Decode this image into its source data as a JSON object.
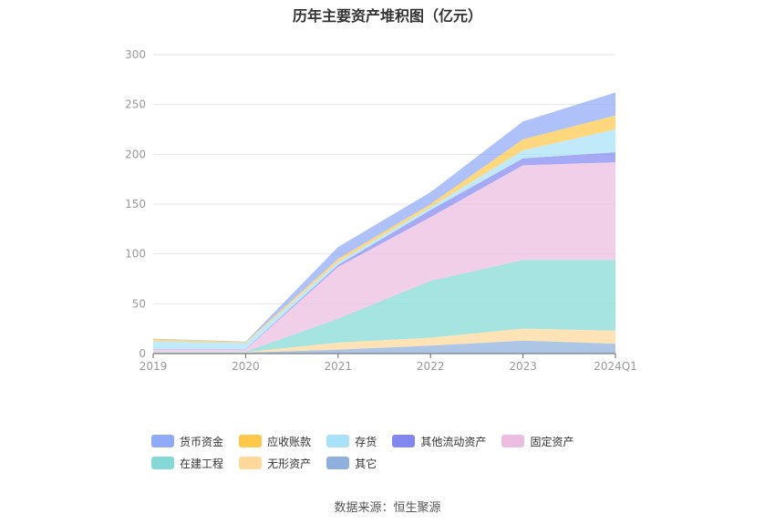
{
  "chart_data": {
    "type": "area",
    "stacked": true,
    "title": "历年主要资产堆积图（亿元）",
    "categories": [
      "2019",
      "2020",
      "2021",
      "2022",
      "2023",
      "2024Q1"
    ],
    "ylim": [
      0,
      300
    ],
    "yticks": [
      0,
      50,
      100,
      150,
      200,
      250,
      300
    ],
    "grid": true,
    "legend_position": "bottom",
    "series": [
      {
        "name": "其它",
        "color": "#8fb0dc",
        "values": [
          1,
          1,
          4,
          8,
          13,
          10
        ]
      },
      {
        "name": "无形资产",
        "color": "#ffd89a",
        "values": [
          0.5,
          0.5,
          7,
          8,
          12,
          13
        ]
      },
      {
        "name": "在建工程",
        "color": "#84d9d6",
        "values": [
          0.5,
          0.5,
          24,
          57,
          69,
          71
        ]
      },
      {
        "name": "固定资产",
        "color": "#ecbde0",
        "values": [
          2,
          2,
          52,
          64,
          95,
          98
        ]
      },
      {
        "name": "其他流动资产",
        "color": "#8388f0",
        "values": [
          0.5,
          0.5,
          2,
          7,
          7,
          10
        ]
      },
      {
        "name": "存货",
        "color": "#a7e2f8",
        "values": [
          8,
          6,
          3,
          3,
          8,
          23
        ]
      },
      {
        "name": "应收账款",
        "color": "#ffc84a",
        "values": [
          2,
          1,
          3,
          3,
          11,
          14
        ]
      },
      {
        "name": "货币资金",
        "color": "#8faaf6",
        "values": [
          0.5,
          0.5,
          12,
          12,
          18,
          23
        ]
      }
    ]
  },
  "legend": [
    {
      "name": "货币资金",
      "color": "#8faaf6"
    },
    {
      "name": "应收账款",
      "color": "#ffc84a"
    },
    {
      "name": "存货",
      "color": "#a7e2f8"
    },
    {
      "name": "其他流动资产",
      "color": "#8388f0"
    },
    {
      "name": "固定资产",
      "color": "#ecbde0"
    },
    {
      "name": "在建工程",
      "color": "#84d9d6"
    },
    {
      "name": "无形资产",
      "color": "#ffd89a"
    },
    {
      "name": "其它",
      "color": "#8fb0dc"
    }
  ],
  "source": "数据来源：恒生聚源"
}
